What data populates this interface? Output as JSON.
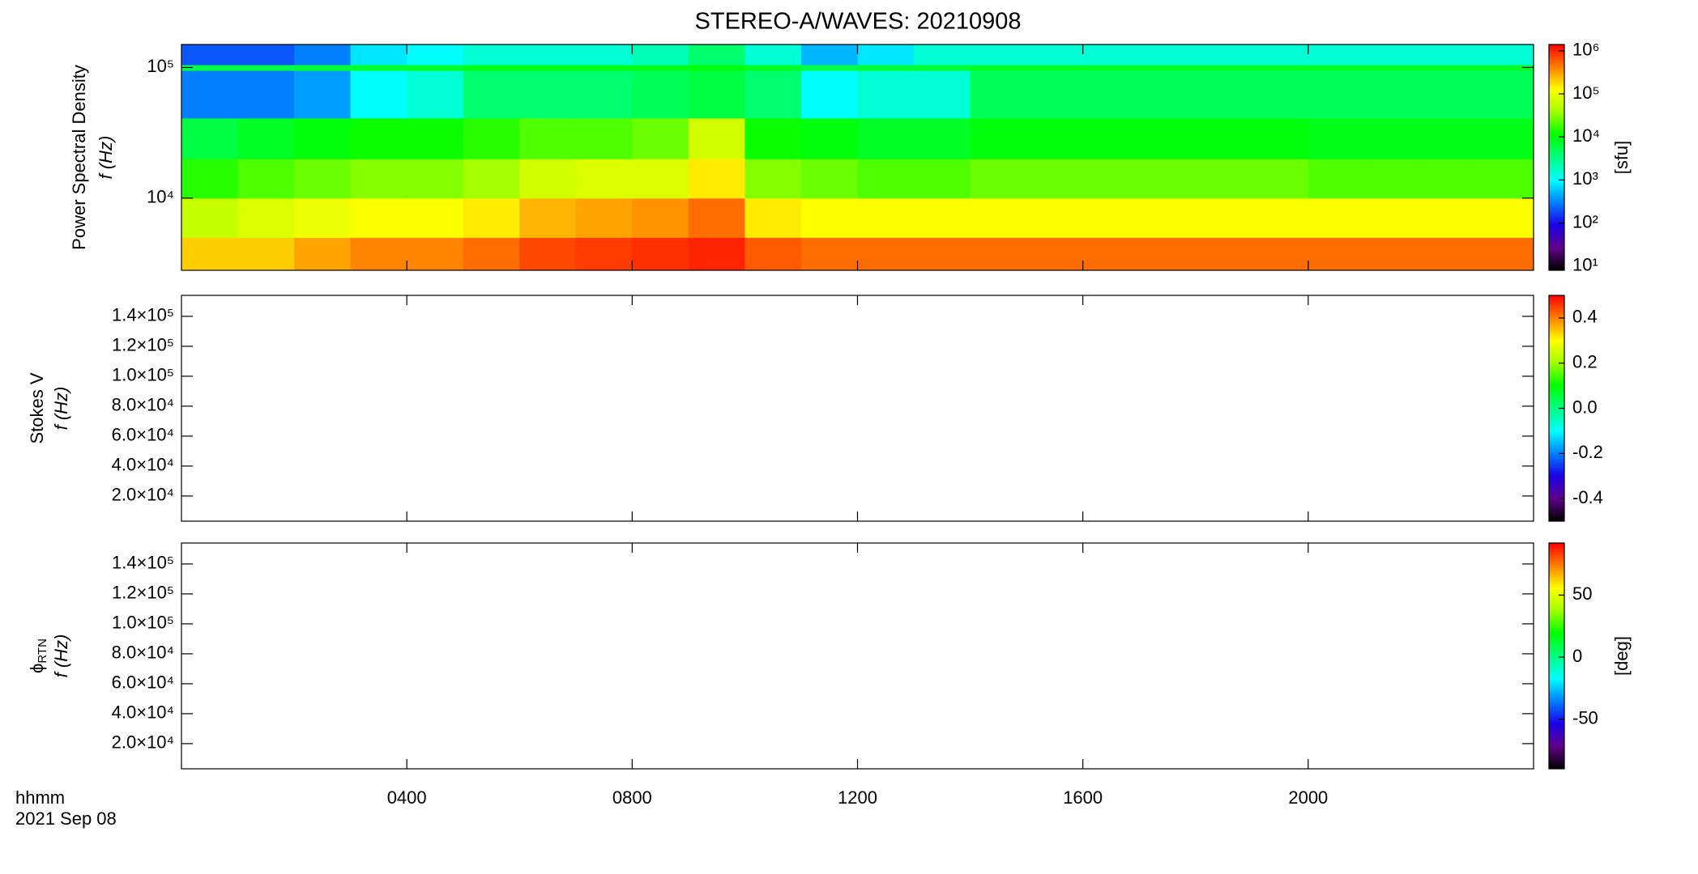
{
  "chart_data": [
    {
      "type": "heatmap",
      "title": "STEREO-A/WAVES: 20210908",
      "ylabel_top": "Power Spectral Density",
      "ylabel": "f (Hz)",
      "ylog": true,
      "ylim": [
        2800,
        150000
      ],
      "yticks": [
        {
          "value": 10000,
          "label": "10⁴"
        },
        {
          "value": 100000,
          "label": "10⁵"
        }
      ],
      "x_bins": [
        0,
        1,
        2,
        3,
        4,
        5,
        6,
        7,
        8,
        9,
        10,
        11,
        12,
        13,
        14,
        15,
        16,
        17,
        18,
        19,
        20,
        21,
        22,
        23,
        24
      ],
      "y_bins": [
        2800,
        5000,
        10000,
        20000,
        41000,
        95000,
        105000,
        150000
      ],
      "z": [
        [
          200000,
          200000,
          300000,
          400000,
          400000,
          500000,
          700000,
          800000,
          900000,
          1000000,
          600000,
          500000,
          500000,
          500000,
          500000,
          500000,
          500000,
          500000,
          500000,
          500000,
          500000,
          500000,
          500000,
          500000
        ],
        [
          60000,
          80000,
          100000,
          120000,
          120000,
          150000,
          250000,
          300000,
          350000,
          500000,
          150000,
          120000,
          120000,
          120000,
          120000,
          120000,
          120000,
          120000,
          120000,
          120000,
          120000,
          120000,
          120000,
          120000
        ],
        [
          15000,
          20000,
          25000,
          30000,
          30000,
          40000,
          70000,
          80000,
          80000,
          150000,
          30000,
          25000,
          20000,
          20000,
          25000,
          25000,
          25000,
          25000,
          25000,
          25000,
          20000,
          20000,
          20000,
          20000
        ],
        [
          6000,
          8000,
          10000,
          12000,
          12000,
          15000,
          20000,
          20000,
          25000,
          70000,
          12000,
          10000,
          8000,
          8000,
          10000,
          10000,
          10000,
          10000,
          10000,
          10000,
          9000,
          9000,
          9000,
          9000
        ],
        [
          300,
          300,
          400,
          1000,
          1500,
          4000,
          4000,
          4000,
          5000,
          6000,
          4000,
          1000,
          1500,
          1500,
          5000,
          5000,
          5000,
          5000,
          5000,
          5000,
          5000,
          5000,
          5000,
          5000
        ],
        [
          6000,
          6000,
          7000,
          8000,
          8000,
          9000,
          9000,
          9000,
          9000,
          10000,
          8000,
          6000,
          7000,
          7000,
          8000,
          8000,
          8000,
          8000,
          8000,
          8000,
          8000,
          8000,
          8000,
          8000
        ],
        [
          200,
          200,
          300,
          800,
          1000,
          1500,
          1500,
          1500,
          2000,
          4000,
          1500,
          500,
          800,
          1500,
          1500,
          1500,
          1500,
          1500,
          1500,
          1500,
          1500,
          1500,
          1500,
          1500
        ]
      ],
      "clog": true,
      "clim": [
        8,
        1400000
      ],
      "cticks": [
        {
          "value": 10,
          "label": "10¹"
        },
        {
          "value": 100,
          "label": "10²"
        },
        {
          "value": 1000,
          "label": "10³"
        },
        {
          "value": 10000,
          "label": "10⁴"
        },
        {
          "value": 100000,
          "label": "10⁵"
        },
        {
          "value": 1000000,
          "label": "10⁶"
        }
      ],
      "clabel": "[sfu]",
      "colormap": [
        "#000000",
        "#60008a",
        "#1a00e6",
        "#0080ff",
        "#00ffff",
        "#00ff80",
        "#00ff00",
        "#a0ff00",
        "#ffff00",
        "#ff8000",
        "#ff0000"
      ]
    },
    {
      "type": "heatmap",
      "ylabel_top": "Stokes V",
      "ylabel": "f (Hz)",
      "ylim": [
        3200,
        154000
      ],
      "yticks": [
        {
          "value": 20000,
          "label": "2.0×10⁴"
        },
        {
          "value": 40000,
          "label": "4.0×10⁴"
        },
        {
          "value": 60000,
          "label": "6.0×10⁴"
        },
        {
          "value": 80000,
          "label": "8.0×10⁴"
        },
        {
          "value": 100000,
          "label": "1.0×10⁵"
        },
        {
          "value": 120000,
          "label": "1.2×10⁵"
        },
        {
          "value": 140000,
          "label": "1.4×10⁵"
        }
      ],
      "clim": [
        -0.5,
        0.5
      ],
      "cticks": [
        -0.4,
        -0.2,
        {
          "value": 0,
          "label": "0.0"
        },
        0.2,
        0.4
      ]
    },
    {
      "type": "heatmap",
      "ylabel_top": "ϕ",
      "ylabel_top_sub": "RTN",
      "ylabel": "f (Hz)",
      "ylim": [
        3200,
        154000
      ],
      "yticks": [
        {
          "value": 20000,
          "label": "2.0×10⁴"
        },
        {
          "value": 40000,
          "label": "4.0×10⁴"
        },
        {
          "value": 60000,
          "label": "6.0×10⁴"
        },
        {
          "value": 80000,
          "label": "8.0×10⁴"
        },
        {
          "value": 100000,
          "label": "1.0×10⁵"
        },
        {
          "value": 120000,
          "label": "1.2×10⁵"
        },
        {
          "value": 140000,
          "label": "1.4×10⁵"
        }
      ],
      "clim": [
        -90,
        92
      ],
      "cticks": [
        -50,
        0,
        50
      ],
      "clabel": "[deg]",
      "xlim": [
        0,
        24
      ],
      "xticks": [
        {
          "value": 4,
          "label": "0400"
        },
        {
          "value": 8,
          "label": "0800"
        },
        {
          "value": 12,
          "label": "1200"
        },
        {
          "value": 16,
          "label": "1600"
        },
        {
          "value": 20,
          "label": "2000"
        }
      ],
      "xlabel": "hhmm",
      "date_label": "2021 Sep 08"
    }
  ]
}
